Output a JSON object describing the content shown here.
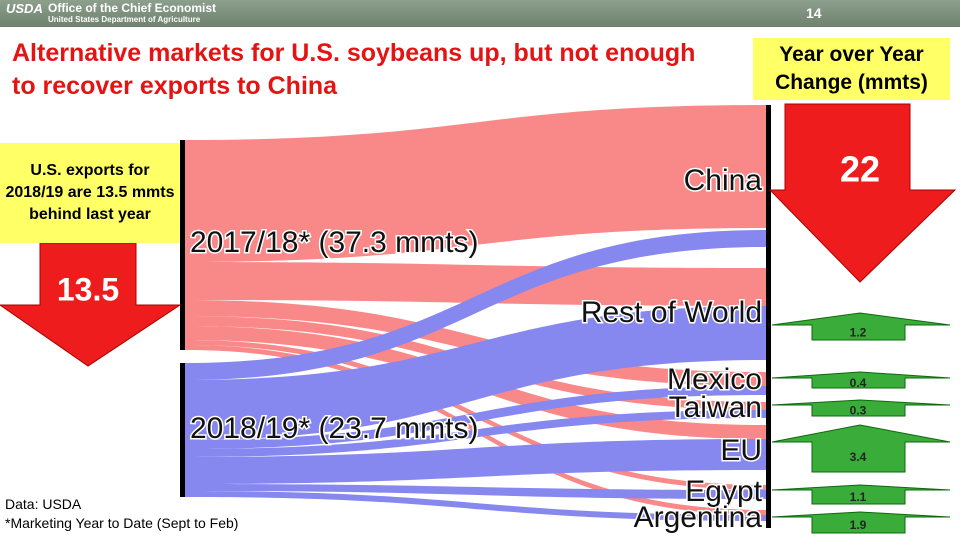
{
  "header": {
    "logo": "USDA",
    "org": "Office of the Chief Economist",
    "dept": "United States Department of Agriculture",
    "page": "14"
  },
  "title": "Alternative markets for U.S. soybeans up, but not enough to recover exports to China",
  "left_callout": {
    "text": "U.S. exports for 2018/19 are 13.5 mmts behind last year",
    "arrow_label": "13.5"
  },
  "right_callout": {
    "title": "Year over Year Change (mmts)",
    "china_change": "22"
  },
  "sources": [
    "2017/18* (37.3 mmts)",
    "2018/19* (23.7 mmts)"
  ],
  "destinations": [
    {
      "label": "China"
    },
    {
      "label": "Rest of World",
      "change": "1.2"
    },
    {
      "label": "Mexico",
      "change": "0.4"
    },
    {
      "label": "Taiwan",
      "change": "0.3"
    },
    {
      "label": "EU",
      "change": "3.4"
    },
    {
      "label": "Egypt",
      "change": "1.1"
    },
    {
      "label": "Argentina",
      "change": "1.9"
    }
  ],
  "footnotes": [
    "Data: USDA",
    "*Marketing Year to Date (Sept to Feb)"
  ]
}
